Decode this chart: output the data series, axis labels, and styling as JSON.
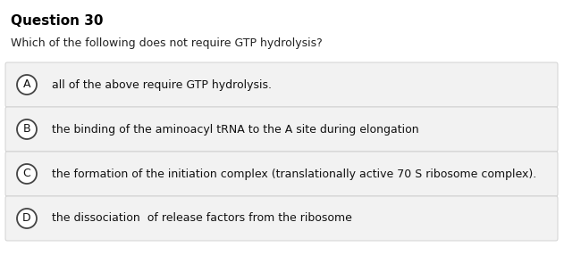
{
  "title": "Question 30",
  "question": "Which of the following does not require GTP hydrolysis?",
  "options": [
    {
      "label": "A",
      "text": "all of the above require GTP hydrolysis."
    },
    {
      "label": "B",
      "text": "the binding of the aminoacyl tRNA to the A site during elongation"
    },
    {
      "label": "C",
      "text": "the formation of the initiation complex (translationally active 70 S ribosome complex)."
    },
    {
      "label": "D",
      "text": "the dissociation  of release factors from the ribosome"
    }
  ],
  "bg_color": "#ffffff",
  "option_bg_color": "#f2f2f2",
  "title_fontsize": 11,
  "question_fontsize": 9,
  "option_fontsize": 9,
  "title_color": "#000000",
  "question_color": "#222222",
  "option_text_color": "#111111",
  "circle_edge_color": "#444444",
  "circle_face_color": "#ffffff",
  "box_edge_color": "#cccccc"
}
